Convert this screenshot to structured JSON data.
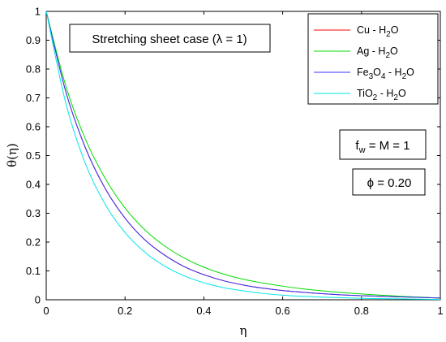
{
  "chart_data": {
    "type": "line",
    "xlabel": "η",
    "ylabel": "θ(η)",
    "xlim": [
      0,
      1
    ],
    "ylim": [
      0,
      1
    ],
    "x_ticks": [
      "0",
      "0.2",
      "0.4",
      "0.6",
      "0.8",
      "1"
    ],
    "y_ticks": [
      "0",
      "0.1",
      "0.2",
      "0.3",
      "0.4",
      "0.5",
      "0.6",
      "0.7",
      "0.8",
      "0.9",
      "1"
    ],
    "grid": false,
    "legend_position": "top-right",
    "x": [
      0,
      0.05,
      0.1,
      0.15,
      0.2,
      0.25,
      0.3,
      0.35,
      0.4,
      0.45,
      0.5,
      0.55,
      0.6,
      0.65,
      0.7,
      0.75,
      0.8,
      0.85,
      0.9,
      0.95,
      1.0
    ],
    "series": [
      {
        "name": "Cu - H2O",
        "name_base": "Cu - H",
        "name_sub": "2",
        "name_tail": "O",
        "color": "#ff0000",
        "values": [
          1.0,
          0.72,
          0.525,
          0.385,
          0.283,
          0.208,
          0.155,
          0.115,
          0.087,
          0.066,
          0.051,
          0.04,
          0.032,
          0.026,
          0.021,
          0.017,
          0.014,
          0.012,
          0.01,
          0.008,
          0.006
        ]
      },
      {
        "name": "Ag - H2O",
        "name_base": "Ag - H",
        "name_sub": "2",
        "name_tail": "O",
        "color": "#00dd00",
        "values": [
          1.0,
          0.74,
          0.555,
          0.42,
          0.318,
          0.243,
          0.187,
          0.145,
          0.113,
          0.089,
          0.071,
          0.058,
          0.047,
          0.038,
          0.031,
          0.025,
          0.02,
          0.016,
          0.012,
          0.009,
          0.006
        ]
      },
      {
        "name": "Fe3O4 - H2O",
        "name_base": "Fe",
        "name_sub": "3",
        "name_mid": "O",
        "name_sub2": "4",
        "name_mid2": " - H",
        "name_sub3": "2",
        "name_tail": "O",
        "color": "#3333ff",
        "values": [
          1.0,
          0.72,
          0.525,
          0.385,
          0.283,
          0.208,
          0.155,
          0.115,
          0.087,
          0.066,
          0.051,
          0.04,
          0.032,
          0.026,
          0.021,
          0.017,
          0.014,
          0.012,
          0.01,
          0.008,
          0.006
        ]
      },
      {
        "name": "TiO2 - H2O",
        "name_base": "TiO",
        "name_sub": "2",
        "name_mid": " - H",
        "name_sub2": "2",
        "name_tail": "O",
        "color": "#00e5e5",
        "values": [
          1.0,
          0.68,
          0.47,
          0.33,
          0.233,
          0.165,
          0.117,
          0.083,
          0.059,
          0.042,
          0.031,
          0.022,
          0.016,
          0.012,
          0.009,
          0.007,
          0.005,
          0.004,
          0.003,
          0.002,
          0.001
        ]
      }
    ],
    "annotations": {
      "case_title": {
        "text": "Stretching sheet case (",
        "symbol": "λ",
        "tail": " = 1)"
      },
      "fw_box": {
        "base": "f",
        "sub": "w",
        "tail": " = M = 1"
      },
      "phi_box": {
        "symbol": "ϕ",
        "tail": " = 0.20"
      }
    }
  }
}
